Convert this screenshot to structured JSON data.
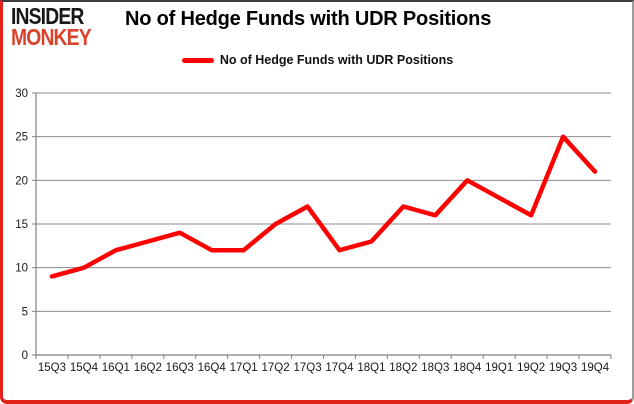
{
  "logo": {
    "line1": "INSIDER",
    "line2": "MONKEY",
    "line1_color": "#171717",
    "line2_color": "#d9432c"
  },
  "header": {
    "title": "No of Hedge Funds with UDR Positions"
  },
  "legend": {
    "label": "No of Hedge Funds with UDR Positions",
    "line_color": "#fe0000"
  },
  "chart_data": {
    "type": "line",
    "title": "No of Hedge Funds with UDR Positions",
    "categories": [
      "15Q3",
      "15Q4",
      "16Q1",
      "16Q2",
      "16Q3",
      "16Q4",
      "17Q1",
      "17Q2",
      "17Q3",
      "17Q4",
      "18Q1",
      "18Q2",
      "18Q3",
      "18Q4",
      "19Q1",
      "19Q2",
      "19Q3",
      "19Q4"
    ],
    "series": [
      {
        "name": "No of Hedge Funds with UDR Positions",
        "color": "#fe0000",
        "values": [
          9,
          10,
          12,
          13,
          14,
          12,
          12,
          15,
          17,
          12,
          13,
          17,
          16,
          20,
          18,
          16,
          25,
          21
        ]
      }
    ],
    "xlabel": "",
    "ylabel": "",
    "ylim": [
      0,
      30
    ],
    "yticks": [
      0,
      5,
      10,
      15,
      20,
      25,
      30
    ],
    "grid": "horizontal",
    "legend_position": "top-center"
  },
  "style": {
    "gridline_color": "#8c8c8c",
    "axis_color": "#7f7f7f",
    "tick_label_color": "#1a1a1a",
    "frame_red": "#e2231a",
    "frame_dark": "#3f3f3f",
    "frame_gray": "#9c9c9c",
    "background": "#ffffff"
  }
}
